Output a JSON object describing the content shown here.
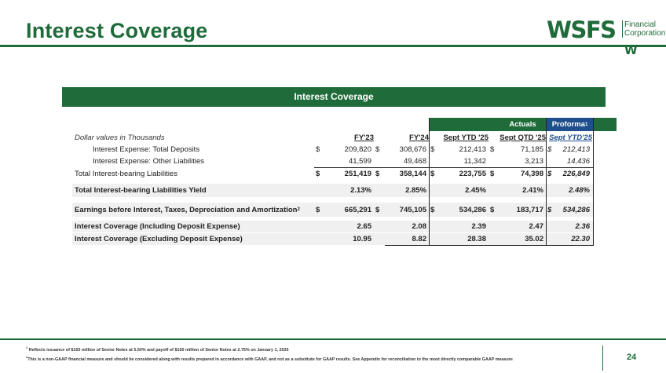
{
  "page": {
    "title": "Interest Coverage",
    "page_number": "24"
  },
  "logo": {
    "mark": "WSFS",
    "sub_line1": "Financial",
    "sub_line2": "Corporation",
    "w_mark": "W"
  },
  "table": {
    "banner": "Interest Coverage",
    "group_actuals": "Actuals",
    "group_proforma": "Proforma",
    "group_proforma_sup": "1",
    "units_label": "Dollar values in Thousands",
    "columns": [
      "FY'23",
      "FY'24",
      "Sept YTD '25",
      "Sept QTD '25",
      "Sept YTD'25"
    ],
    "rows": [
      {
        "label": "Interest Expense: Total Deposits",
        "cur": [
          "$",
          "$",
          "$",
          "$",
          "$"
        ],
        "values": [
          "209,820",
          "308,676",
          "212,413",
          "71,185",
          "212,413"
        ]
      },
      {
        "label": "Interest Expense: Other Liabilities",
        "cur": [
          "",
          "",
          "",
          "",
          ""
        ],
        "values": [
          "41,599",
          "49,468",
          "11,342",
          "3,213",
          "14,436"
        ]
      },
      {
        "label": "Total Interest-bearing Liabilities",
        "cur": [
          "$",
          "$",
          "$",
          "$",
          "$"
        ],
        "values": [
          "251,419",
          "358,144",
          "223,755",
          "74,398",
          "226,849"
        ]
      },
      {
        "label": "Total Interest-bearing Liabilities Yield",
        "cur": [
          "",
          "",
          "",
          "",
          ""
        ],
        "values": [
          "2.13%",
          "2.85%",
          "2.45%",
          "2.41%",
          "2.48%"
        ]
      },
      {
        "label": "Earnings before Interest, Taxes, Depreciation and Amortization",
        "label_sup": "2",
        "cur": [
          "$",
          "$",
          "$",
          "$",
          "$"
        ],
        "values": [
          "665,291",
          "745,105",
          "534,286",
          "183,717",
          "534,286"
        ]
      },
      {
        "label": "Interest Coverage (Including Deposit Expense)",
        "cur": [
          "",
          "",
          "",
          "",
          ""
        ],
        "values": [
          "2.65",
          "2.08",
          "2.39",
          "2.47",
          "2.36"
        ]
      },
      {
        "label": "Interest Coverage (Excluding Deposit Expense)",
        "cur": [
          "",
          "",
          "",
          "",
          ""
        ],
        "values": [
          "10.95",
          "8.82",
          "28.38",
          "35.02",
          "22.30"
        ]
      }
    ]
  },
  "footnotes": {
    "fn1_mark": "1",
    "fn1": "Reflects issuance of $150 million of Senior Notes at 5.50% and payoff of $150 million of Senior Notes at 2.75% on January 1, 2025",
    "fn2_mark": "2",
    "fn2": "This is a non-GAAP financial measure and should be considered along with results prepared in accordance with GAAP, and not as a substitute for GAAP results. See Appendix for reconciliation to the most directly comparable GAAP measure"
  },
  "colors": {
    "brand_green": "#1f6b3a",
    "proforma_blue": "#1f4e8c"
  }
}
